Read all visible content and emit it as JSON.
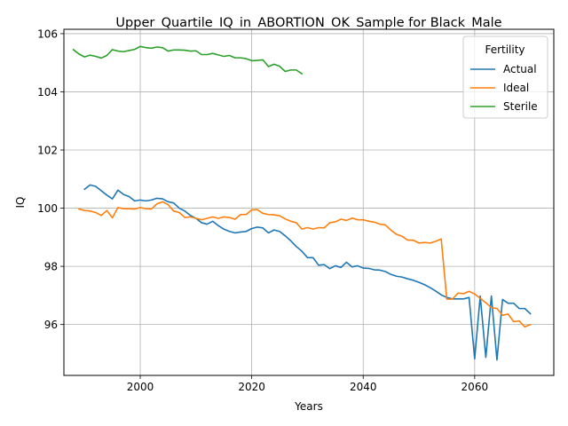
{
  "chart_data": {
    "type": "line",
    "title": "Upper_Quartile_IQ_in_ABORTION_OK_Sample for Black_Male",
    "xlabel": "Years",
    "ylabel": "IQ",
    "xlim": [
      1986.3,
      2074.2
    ],
    "ylim": [
      94.25,
      106.15
    ],
    "xticks": [
      2000,
      2020,
      2040,
      2060
    ],
    "yticks": [
      96,
      98,
      100,
      102,
      104,
      106
    ],
    "grid": true,
    "legend": {
      "title": "Fertility",
      "placement": "top-right"
    },
    "series": [
      {
        "name": "Actual",
        "color": "#1f77b4",
        "x": [
          1990,
          1991,
          1992,
          1993,
          1994,
          1995,
          1996,
          1997,
          1998,
          1999,
          2000,
          2001,
          2002,
          2003,
          2004,
          2005,
          2006,
          2007,
          2008,
          2009,
          2010,
          2011,
          2012,
          2013,
          2014,
          2015,
          2016,
          2017,
          2018,
          2019,
          2020,
          2021,
          2022,
          2023,
          2024,
          2025,
          2026,
          2027,
          2028,
          2029,
          2030,
          2031,
          2032,
          2033,
          2034,
          2035,
          2036,
          2037,
          2038,
          2039,
          2040,
          2041,
          2042,
          2043,
          2044,
          2045,
          2046,
          2047,
          2048,
          2049,
          2050,
          2051,
          2052,
          2053,
          2054,
          2055,
          2056,
          2057,
          2058,
          2059,
          2060,
          2061,
          2062,
          2063,
          2064,
          2065,
          2066,
          2067,
          2068,
          2069,
          2070
        ],
        "y": [
          100.65,
          100.8,
          100.75,
          100.6,
          100.45,
          100.32,
          100.62,
          100.47,
          100.4,
          100.25,
          100.28,
          100.25,
          100.28,
          100.34,
          100.32,
          100.22,
          100.18,
          100.0,
          99.9,
          99.75,
          99.65,
          99.5,
          99.45,
          99.55,
          99.4,
          99.28,
          99.2,
          99.15,
          99.18,
          99.2,
          99.3,
          99.35,
          99.32,
          99.15,
          99.25,
          99.2,
          99.05,
          98.88,
          98.68,
          98.52,
          98.3,
          98.3,
          98.04,
          98.06,
          97.92,
          98.02,
          97.96,
          98.14,
          97.98,
          98.02,
          97.94,
          97.93,
          97.88,
          97.87,
          97.82,
          97.72,
          97.66,
          97.63,
          97.57,
          97.52,
          97.45,
          97.37,
          97.27,
          97.15,
          97.02,
          96.93,
          96.88,
          96.88,
          96.88,
          96.93,
          94.82,
          96.98,
          94.87,
          96.98,
          94.78,
          96.86,
          96.73,
          96.73,
          96.55,
          96.55,
          96.37
        ]
      },
      {
        "name": "Ideal",
        "color": "#ff7f0e",
        "x": [
          1989,
          1990,
          1991,
          1992,
          1993,
          1994,
          1995,
          1996,
          1997,
          1998,
          1999,
          2000,
          2001,
          2002,
          2003,
          2004,
          2005,
          2006,
          2007,
          2008,
          2009,
          2010,
          2011,
          2012,
          2013,
          2014,
          2015,
          2016,
          2017,
          2018,
          2019,
          2020,
          2021,
          2022,
          2023,
          2024,
          2025,
          2026,
          2027,
          2028,
          2029,
          2030,
          2031,
          2032,
          2033,
          2034,
          2035,
          2036,
          2037,
          2038,
          2039,
          2040,
          2041,
          2042,
          2043,
          2044,
          2045,
          2046,
          2047,
          2048,
          2049,
          2050,
          2051,
          2052,
          2053,
          2054,
          2055,
          2056,
          2057,
          2058,
          2059,
          2060,
          2061,
          2062,
          2063,
          2064,
          2065,
          2066,
          2067,
          2068,
          2069,
          2070
        ],
        "y": [
          99.97,
          99.92,
          99.9,
          99.85,
          99.75,
          99.92,
          99.67,
          100.02,
          99.98,
          99.98,
          99.97,
          100.02,
          99.98,
          99.97,
          100.15,
          100.22,
          100.12,
          99.9,
          99.85,
          99.68,
          99.7,
          99.65,
          99.6,
          99.65,
          99.7,
          99.65,
          99.7,
          99.68,
          99.62,
          99.78,
          99.78,
          99.94,
          99.95,
          99.82,
          99.78,
          99.77,
          99.74,
          99.63,
          99.55,
          99.5,
          99.28,
          99.33,
          99.28,
          99.33,
          99.32,
          99.5,
          99.53,
          99.62,
          99.58,
          99.66,
          99.6,
          99.6,
          99.55,
          99.52,
          99.45,
          99.42,
          99.24,
          99.1,
          99.03,
          98.9,
          98.9,
          98.8,
          98.82,
          98.8,
          98.86,
          98.94,
          96.87,
          96.87,
          97.08,
          97.06,
          97.14,
          97.05,
          96.9,
          96.75,
          96.58,
          96.55,
          96.32,
          96.36,
          96.1,
          96.12,
          95.92,
          96.0
        ]
      },
      {
        "name": "Sterile",
        "color": "#2ca02c",
        "x": [
          1988,
          1989,
          1990,
          1991,
          1992,
          1993,
          1994,
          1995,
          1996,
          1997,
          1998,
          1999,
          2000,
          2001,
          2002,
          2003,
          2004,
          2005,
          2006,
          2007,
          2008,
          2009,
          2010,
          2011,
          2012,
          2013,
          2014,
          2015,
          2016,
          2017,
          2018,
          2019,
          2020,
          2021,
          2022,
          2023,
          2024,
          2025,
          2026,
          2027,
          2028,
          2029
        ],
        "y": [
          105.45,
          105.3,
          105.2,
          105.26,
          105.22,
          105.16,
          105.25,
          105.45,
          105.4,
          105.38,
          105.42,
          105.46,
          105.56,
          105.52,
          105.5,
          105.54,
          105.52,
          105.4,
          105.44,
          105.44,
          105.43,
          105.4,
          105.41,
          105.28,
          105.28,
          105.32,
          105.27,
          105.22,
          105.25,
          105.17,
          105.17,
          105.14,
          105.07,
          105.08,
          105.1,
          104.87,
          104.95,
          104.88,
          104.7,
          104.75,
          104.75,
          104.62
        ]
      }
    ]
  }
}
